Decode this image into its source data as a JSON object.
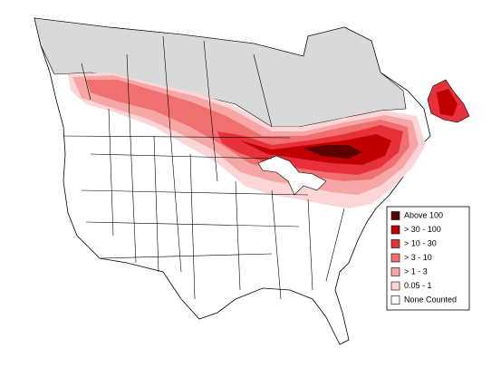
{
  "legend": {
    "items": [
      {
        "label": "Above 100",
        "color": "#5c0000"
      },
      {
        "label": "> 30 - 100",
        "color": "#c00000"
      },
      {
        "label": "> 10 - 30",
        "color": "#e8303a"
      },
      {
        "label": "> 3 - 10",
        "color": "#f07070"
      },
      {
        "label": "> 1 - 3",
        "color": "#f7a6a6"
      },
      {
        "label": "0.05 - 1",
        "color": "#fcd6d6"
      },
      {
        "label": "None Counted",
        "color": "#ffffff"
      }
    ]
  }
}
